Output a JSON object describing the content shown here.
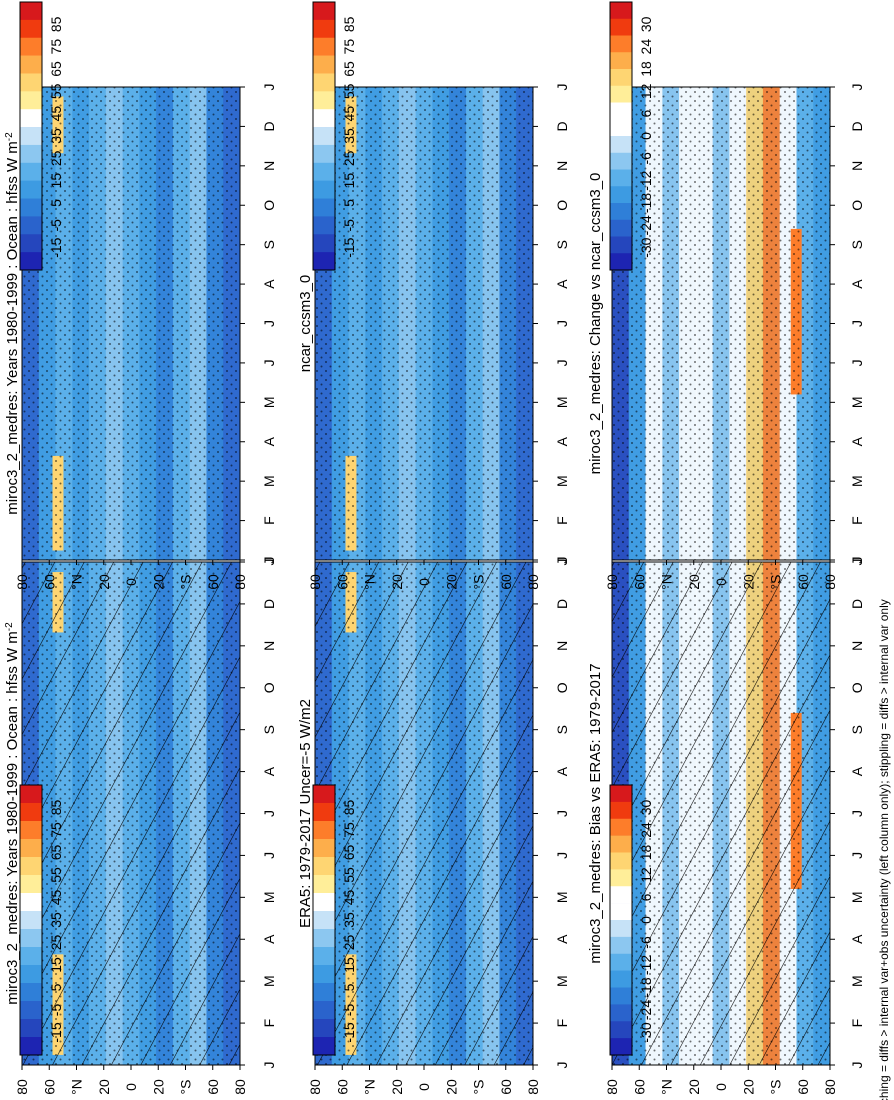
{
  "figure": {
    "caption": "hatching = diffs > internal var+obs uncertainty (left column only); stippling = diffs > internal var only"
  },
  "chart_data": [
    {
      "type": "heatmap",
      "panel": "left-top",
      "title_parts": [
        "miroc3_2_medres: Years 1980-1999 : Ocean : hfss W m",
        "-2"
      ],
      "xlabel": "month",
      "ylabel": "latitude",
      "x_ticks": [
        "J",
        "F",
        "M",
        "A",
        "M",
        "J",
        "J",
        "A",
        "S",
        "O",
        "N",
        "D",
        "J"
      ],
      "y_ticks": [
        "80",
        "60",
        "°N",
        "20",
        "0",
        "20",
        "°S",
        "60",
        "80"
      ],
      "colorbar": {
        "labels": [
          "85",
          "75",
          "65",
          "55",
          "45",
          "35",
          "25",
          "15",
          "5",
          "-5",
          "-15"
        ],
        "colors": [
          "#d7191c",
          "#f03b0f",
          "#fd7d2a",
          "#fdae4b",
          "#fed572",
          "#ffee99",
          "#ffffff",
          "#c6e2f7",
          "#8cc7f0",
          "#5bb0ea",
          "#3d9be2",
          "#2f7fd8",
          "#2a63cc",
          "#2546bd",
          "#1d24b2"
        ],
        "units": "W m-2"
      },
      "hatching": true,
      "stippling": true
    },
    {
      "type": "heatmap",
      "panel": "right-top",
      "title_parts": [
        "miroc3_2_medres: Years 1980-1999 : Ocean : hfss W m",
        "-2"
      ],
      "xlabel": "month",
      "ylabel": "latitude",
      "x_ticks": [
        "J",
        "F",
        "M",
        "A",
        "M",
        "J",
        "J",
        "A",
        "S",
        "O",
        "N",
        "D",
        "J"
      ],
      "y_ticks": [
        "80",
        "60",
        "°N",
        "20",
        "0",
        "20",
        "°S",
        "60",
        "80"
      ],
      "colorbar": {
        "labels": [
          "85",
          "75",
          "65",
          "55",
          "45",
          "35",
          "25",
          "15",
          "5",
          "-5",
          "-15"
        ],
        "units": "W m-2"
      },
      "hatching": false,
      "stippling": true
    },
    {
      "type": "heatmap",
      "panel": "left-middle",
      "title_parts": [
        "ERA5: 1979-2017 Uncer=-5 W/m2"
      ],
      "xlabel": "month",
      "ylabel": "latitude",
      "x_ticks": [
        "J",
        "F",
        "M",
        "A",
        "M",
        "J",
        "J",
        "A",
        "S",
        "O",
        "N",
        "D",
        "J"
      ],
      "y_ticks": [
        "80",
        "60",
        "°N",
        "20",
        "0",
        "20",
        "°S",
        "60",
        "80"
      ],
      "colorbar": {
        "labels": [
          "85",
          "75",
          "65",
          "55",
          "45",
          "35",
          "25",
          "15",
          "5",
          "-5",
          "-15"
        ]
      },
      "hatching": true,
      "stippling": true
    },
    {
      "type": "heatmap",
      "panel": "right-middle",
      "title_parts": [
        "ncar_ccsm3_0"
      ],
      "xlabel": "month",
      "ylabel": "latitude",
      "x_ticks": [
        "J",
        "F",
        "M",
        "A",
        "M",
        "J",
        "J",
        "A",
        "S",
        "O",
        "N",
        "D",
        "J"
      ],
      "y_ticks": [
        "80",
        "60",
        "°N",
        "20",
        "0",
        "20",
        "°S",
        "60",
        "80"
      ],
      "colorbar": {
        "labels": [
          "85",
          "75",
          "65",
          "55",
          "45",
          "35",
          "25",
          "15",
          "5",
          "-5",
          "-15"
        ]
      },
      "hatching": false,
      "stippling": true
    },
    {
      "type": "heatmap",
      "panel": "left-bottom",
      "title_parts": [
        "miroc3_2_medres: Bias vs ERA5: 1979-2017"
      ],
      "xlabel": "month",
      "ylabel": "latitude",
      "x_ticks": [
        "J",
        "F",
        "M",
        "A",
        "M",
        "J",
        "J",
        "A",
        "S",
        "O",
        "N",
        "D",
        "J"
      ],
      "y_ticks": [
        "80",
        "60",
        "°N",
        "20",
        "0",
        "20",
        "°S",
        "60",
        "80"
      ],
      "colorbar": {
        "labels": [
          "30",
          "24",
          "18",
          "12",
          "6",
          "0",
          "-6",
          "-12",
          "-18",
          "-24",
          "-30"
        ],
        "colors": [
          "#d7191c",
          "#f03b0f",
          "#fd7d2a",
          "#fdae4b",
          "#fed572",
          "#ffee99",
          "#ffffff",
          "#ffffff",
          "#c6e2f7",
          "#8cc7f0",
          "#5bb0ea",
          "#3d9be2",
          "#2f7fd8",
          "#2a63cc",
          "#2546bd",
          "#1d24b2"
        ]
      },
      "hatching": true,
      "stippling": true
    },
    {
      "type": "heatmap",
      "panel": "right-bottom",
      "title_parts": [
        "miroc3_2_medres: Change vs ncar_ccsm3_0"
      ],
      "xlabel": "month",
      "ylabel": "latitude",
      "x_ticks": [
        "J",
        "F",
        "M",
        "A",
        "M",
        "J",
        "J",
        "A",
        "S",
        "O",
        "N",
        "D",
        "J"
      ],
      "y_ticks": [
        "80",
        "60",
        "°N",
        "20",
        "0",
        "20",
        "°S",
        "60",
        "80"
      ],
      "colorbar": {
        "labels": [
          "30",
          "24",
          "18",
          "12",
          "6",
          "0",
          "-6",
          "-12",
          "-18",
          "-24",
          "-30"
        ]
      },
      "hatching": false,
      "stippling": true
    }
  ]
}
